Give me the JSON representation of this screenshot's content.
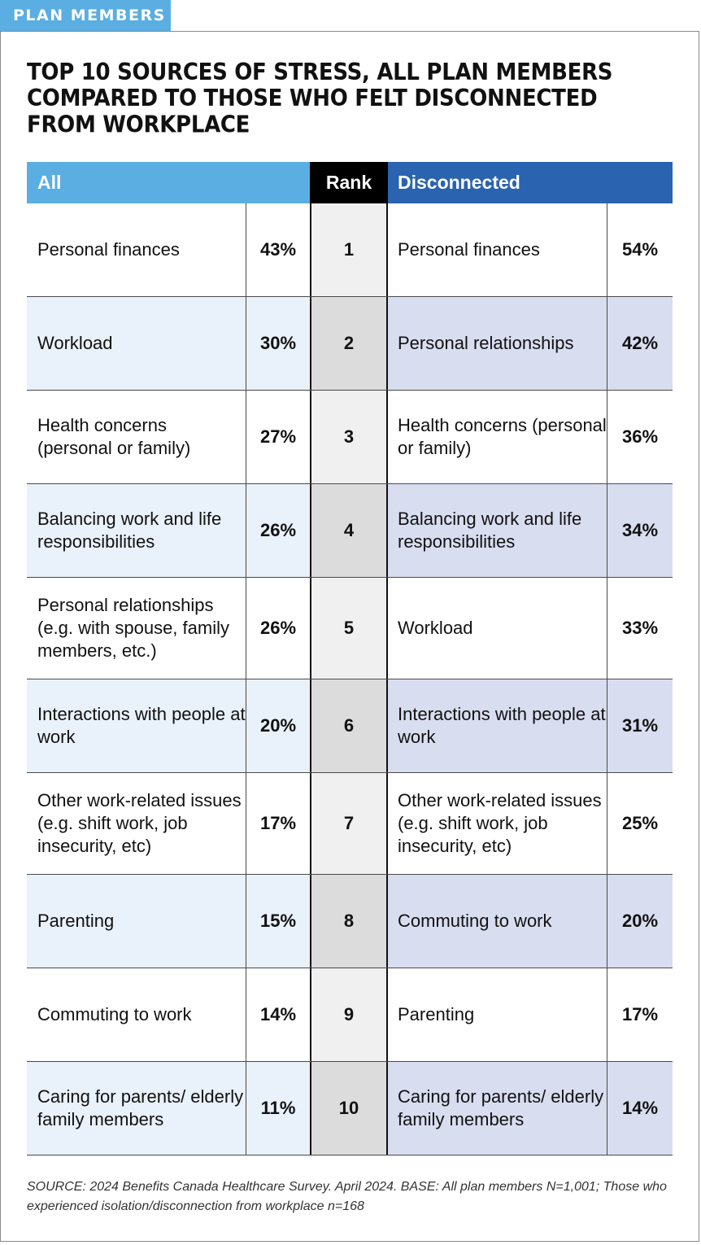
{
  "tag": "PLAN MEMBERS",
  "title": "TOP 10 SOURCES OF STRESS, ALL PLAN MEMBERS COMPARED TO THOSE WHO FELT DISCONNECTED FROM WORKPLACE",
  "headers": {
    "all": "All",
    "rank": "Rank",
    "disconnected": "Disconnected"
  },
  "rows": [
    {
      "all_label": "Personal finances",
      "all_pct": "43%",
      "rank": "1",
      "disc_label": "Personal finances",
      "disc_pct": "54%"
    },
    {
      "all_label": "Workload",
      "all_pct": "30%",
      "rank": "2",
      "disc_label": "Personal relationships",
      "disc_pct": "42%"
    },
    {
      "all_label": "Health concerns (personal or family)",
      "all_pct": "27%",
      "rank": "3",
      "disc_label": "Health concerns (personal or family)",
      "disc_pct": "36%"
    },
    {
      "all_label": "Balancing work and life responsibilities",
      "all_pct": "26%",
      "rank": "4",
      "disc_label": "Balancing work and life responsibilities",
      "disc_pct": "34%"
    },
    {
      "all_label": "Personal relationships (e.g. with spouse, family members, etc.)",
      "all_pct": "26%",
      "rank": "5",
      "disc_label": "Workload",
      "disc_pct": "33%"
    },
    {
      "all_label": "Interactions with people at work",
      "all_pct": "20%",
      "rank": "6",
      "disc_label": "Interactions with people at work",
      "disc_pct": "31%"
    },
    {
      "all_label": "Other work-related issues (e.g. shift work, job insecurity, etc)",
      "all_pct": "17%",
      "rank": "7",
      "disc_label": "Other work-related issues (e.g. shift work, job insecurity, etc)",
      "disc_pct": "25%"
    },
    {
      "all_label": "Parenting",
      "all_pct": "15%",
      "rank": "8",
      "disc_label": "Commuting to work",
      "disc_pct": "20%"
    },
    {
      "all_label": "Commuting to work",
      "all_pct": "14%",
      "rank": "9",
      "disc_label": "Parenting",
      "disc_pct": "17%"
    },
    {
      "all_label": "Caring for parents/ elderly family members",
      "all_pct": "11%",
      "rank": "10",
      "disc_label": "Caring for parents/ elderly family members",
      "disc_pct": "14%"
    }
  ],
  "source": "SOURCE: 2024 Benefits Canada Healthcare Survey. April 2024. BASE: All plan members N=1,001; Those who experienced isolation/disconnection from workplace n=168"
}
